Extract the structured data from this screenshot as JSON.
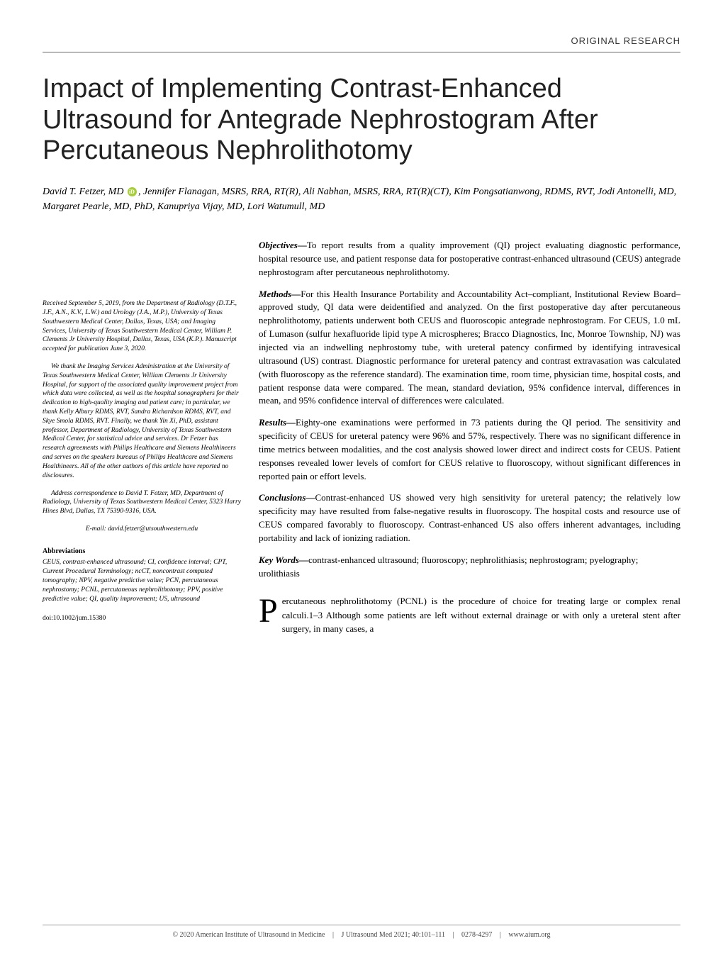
{
  "header": {
    "label": "ORIGINAL RESEARCH"
  },
  "title": "Impact of Implementing Contrast-Enhanced Ultrasound for Antegrade Nephrostogram After Percutaneous Nephrolithotomy",
  "authors": "David T. Fetzer, MD , Jennifer Flanagan, MSRS, RRA, RT(R), Ali Nabhan, MSRS, RRA, RT(R)(CT), Kim Pongsatianwong, RDMS, RVT, Jodi Antonelli, MD, Margaret Pearle, MD, PhD, Kanupriya Vijay, MD, Lori Watumull, MD",
  "left": {
    "affiliation": "Received September 5, 2019, from the Department of Radiology (D.T.F., J.F., A.N., K.V., L.W.) and Urology (J.A., M.P.), University of Texas Southwestern Medical Center, Dallas, Texas, USA; and Imaging Services, University of Texas Southwestern Medical Center, William P. Clements Jr University Hospital, Dallas, Texas, USA (K.P.). Manuscript accepted for publication June 3, 2020.",
    "acknowledgment": "We thank the Imaging Services Administration at the University of Texas Southwestern Medical Center, William Clements Jr University Hospital, for support of the associated quality improvement project from which data were collected, as well as the hospital sonographers for their dedication to high-quality imaging and patient care; in particular, we thank Kelly Albury RDMS, RVT, Sandra Richardson RDMS, RVT, and Skye Smola RDMS, RVT. Finally, we thank Yin Xi, PhD, assistant professor, Department of Radiology, University of Texas Southwestern Medical Center, for statistical advice and services. Dr Fetzer has research agreements with Philips Healthcare and Siemens Healthineers and serves on the speakers bureaus of Philips Healthcare and Siemens Healthineers. All of the other authors of this article have reported no disclosures.",
    "correspondence": "Address correspondence to David T. Fetzer, MD, Department of Radiology, University of Texas Southwestern Medical Center, 5323 Harry Hines Blvd, Dallas, TX 75390-9316, USA.",
    "email": "E-mail: david.fetzer@utsouthwestern.edu",
    "abbrevHeading": "Abbreviations",
    "abbreviations": "CEUS, contrast-enhanced ultrasound; CI, confidence interval; CPT, Current Procedural Terminology; ncCT, noncontrast computed tomography; NPV, negative predictive value; PCN, percutaneous nephrostomy; PCNL, percutaneous nephrolithotomy; PPV, positive predictive value; QI, quality improvement; US, ultrasound",
    "doi": "doi:10.1002/jum.15380"
  },
  "abstract": {
    "objectives": {
      "label": "Objectives—",
      "text": "To report results from a quality improvement (QI) project evaluating diagnostic performance, hospital resource use, and patient response data for postoperative contrast-enhanced ultrasound (CEUS) antegrade nephrostogram after percutaneous nephrolithotomy."
    },
    "methods": {
      "label": "Methods—",
      "text": "For this Health Insurance Portability and Accountability Act–compliant, Institutional Review Board–approved study, QI data were deidentified and analyzed. On the first postoperative day after percutaneous nephrolithotomy, patients underwent both CEUS and fluoroscopic antegrade nephrostogram. For CEUS, 1.0 mL of Lumason (sulfur hexafluoride lipid type A microspheres; Bracco Diagnostics, Inc, Monroe Township, NJ) was injected via an indwelling nephrostomy tube, with ureteral patency confirmed by identifying intravesical ultrasound (US) contrast. Diagnostic performance for ureteral patency and contrast extravasation was calculated (with fluoroscopy as the reference standard). The examination time, room time, physician time, hospital costs, and patient response data were compared. The mean, standard deviation, 95% confidence interval, differences in mean, and 95% confidence interval of differences were calculated."
    },
    "results": {
      "label": "Results—",
      "text": "Eighty-one examinations were performed in 73 patients during the QI period. The sensitivity and specificity of CEUS for ureteral patency were 96% and 57%, respectively. There was no significant difference in time metrics between modalities, and the cost analysis showed lower direct and indirect costs for CEUS. Patient responses revealed lower levels of comfort for CEUS relative to fluoroscopy, without significant differences in reported pain or effort levels."
    },
    "conclusions": {
      "label": "Conclusions—",
      "text": "Contrast-enhanced US showed very high sensitivity for ureteral patency; the relatively low specificity may have resulted from false-negative results in fluoroscopy. The hospital costs and resource use of CEUS compared favorably to fluoroscopy. Contrast-enhanced US also offers inherent advantages, including portability and lack of ionizing radiation."
    },
    "keywords": {
      "label": "Key Words—",
      "text": "contrast-enhanced ultrasound; fluoroscopy; nephrolithiasis; nephrostogram; pyelography; urolithiasis"
    }
  },
  "body": {
    "dropcap": "P",
    "text": "ercutaneous nephrolithotomy (PCNL) is the procedure of choice for treating large or complex renal calculi.1–3 Although some patients are left without external drainage or with only a ureteral stent after surgery, in many cases, a"
  },
  "footer": {
    "copyright": "© 2020 American Institute of Ultrasound in Medicine",
    "journal": "J Ultrasound Med 2021; 40:101–111",
    "issn": "0278-4297",
    "url": "www.aium.org"
  }
}
